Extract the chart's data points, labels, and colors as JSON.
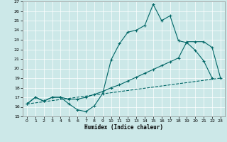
{
  "bg_color": "#cce8e8",
  "grid_color": "#ffffff",
  "line_color": "#006666",
  "xlabel": "Humidex (Indice chaleur)",
  "xlim": [
    -0.5,
    23.5
  ],
  "ylim": [
    15,
    27
  ],
  "xticks": [
    0,
    1,
    2,
    3,
    4,
    5,
    6,
    7,
    8,
    9,
    10,
    11,
    12,
    13,
    14,
    15,
    16,
    17,
    18,
    19,
    20,
    21,
    22,
    23
  ],
  "yticks": [
    15,
    16,
    17,
    18,
    19,
    20,
    21,
    22,
    23,
    24,
    25,
    26,
    27
  ],
  "curve1_x": [
    0,
    1,
    2,
    3,
    4,
    5,
    6,
    7,
    8,
    9,
    10,
    11,
    12,
    13,
    14,
    15,
    16,
    17,
    18,
    19,
    20,
    21,
    22
  ],
  "curve1_y": [
    16.3,
    17.0,
    16.6,
    17.0,
    17.0,
    16.3,
    15.7,
    15.5,
    16.1,
    17.4,
    20.9,
    22.6,
    23.8,
    24.0,
    24.5,
    26.7,
    25.0,
    25.5,
    22.9,
    22.7,
    21.9,
    20.8,
    19.0
  ],
  "curve2_x": [
    0,
    1,
    2,
    3,
    4,
    5,
    6,
    7,
    8,
    9,
    10,
    11,
    12,
    13,
    14,
    15,
    16,
    17,
    18,
    19,
    20,
    21,
    22,
    23
  ],
  "curve2_y": [
    16.3,
    17.0,
    16.6,
    17.0,
    17.0,
    16.8,
    16.8,
    17.0,
    17.3,
    17.6,
    18.0,
    18.3,
    18.7,
    19.1,
    19.5,
    19.9,
    20.3,
    20.7,
    21.1,
    22.8,
    22.8,
    22.8,
    22.2,
    19.0
  ],
  "curve3_x": [
    0,
    23
  ],
  "curve3_y": [
    16.3,
    19.0
  ]
}
